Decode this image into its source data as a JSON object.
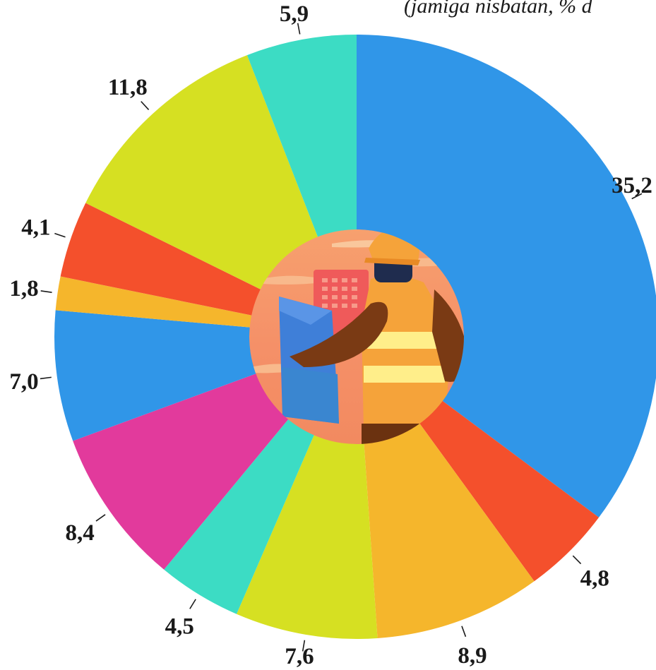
{
  "subtitle": "(jamiga nisbatan, % d",
  "chart_data": {
    "type": "pie",
    "subtitle": "(jamiga nisbatan, % d",
    "slices": [
      {
        "label": "35,2",
        "value": 35.2,
        "color": "#3096E8"
      },
      {
        "label": "4,8",
        "value": 4.8,
        "color": "#F4502C"
      },
      {
        "label": "8,9",
        "value": 8.9,
        "color": "#F5B62C"
      },
      {
        "label": "7,6",
        "value": 7.6,
        "color": "#D6E022"
      },
      {
        "label": "4,5",
        "value": 4.5,
        "color": "#3CDCC4"
      },
      {
        "label": "8,4",
        "value": 8.4,
        "color": "#E23A9C"
      },
      {
        "label": "7,0",
        "value": 7.0,
        "color": "#3096E8"
      },
      {
        "label": "1,8",
        "value": 1.8,
        "color": "#F5B62C"
      },
      {
        "label": "4,1",
        "value": 4.1,
        "color": "#F4502C"
      },
      {
        "label": "11,8",
        "value": 11.8,
        "color": "#D6E022"
      },
      {
        "label": "5,9",
        "value": 5.9,
        "color": "#3CDCC4"
      }
    ],
    "legend": "none",
    "center_image": "construction-worker-illustration"
  }
}
